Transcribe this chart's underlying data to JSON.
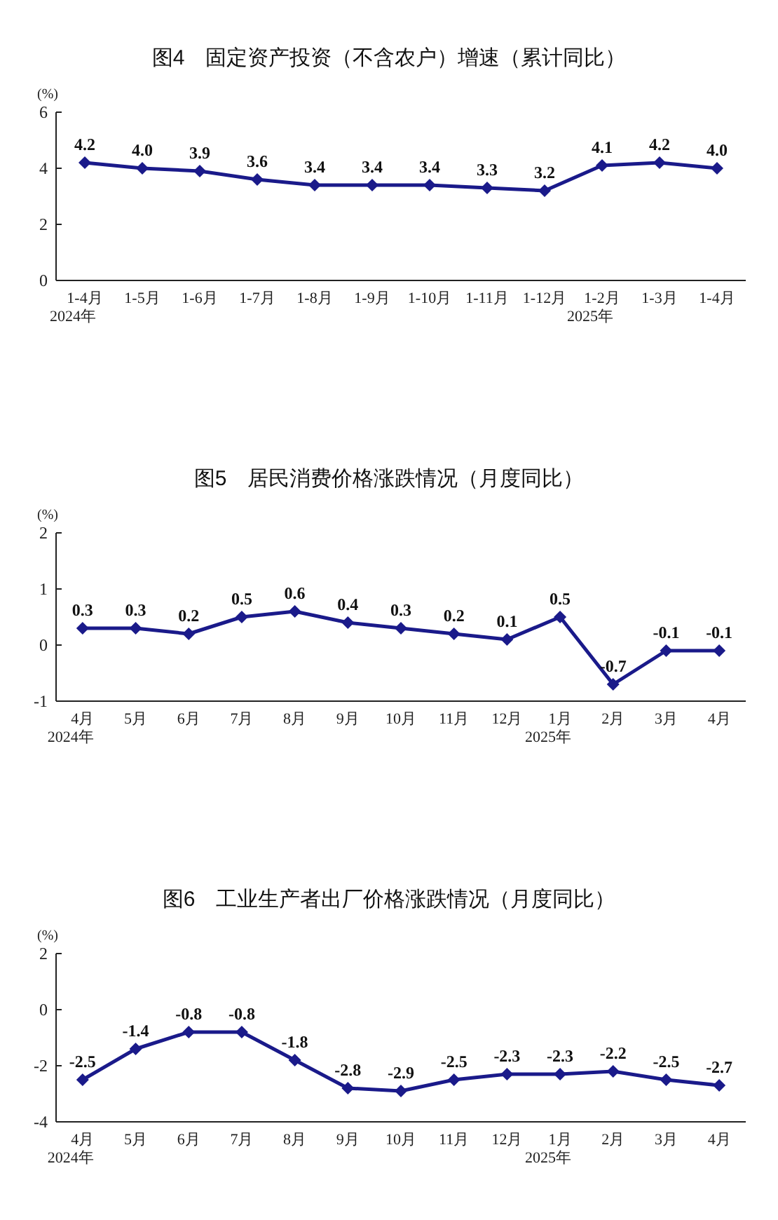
{
  "chart_data": [
    {
      "type": "line",
      "title": "图4　固定资产投资（不含农户）增速（累计同比）",
      "ylabel": "(%)",
      "categories": [
        "1-4月\n2024年",
        "1-5月",
        "1-6月",
        "1-7月",
        "1-8月",
        "1-9月",
        "1-10月",
        "1-11月",
        "1-12月",
        "1-2月\n2025年",
        "1-3月",
        "1-4月"
      ],
      "values": [
        4.2,
        4.0,
        3.9,
        3.6,
        3.4,
        3.4,
        3.4,
        3.3,
        3.2,
        4.1,
        4.2,
        4.0
      ],
      "value_labels": [
        "4.2",
        "4.0",
        "3.9",
        "3.6",
        "3.4",
        "3.4",
        "3.4",
        "3.3",
        "3.2",
        "4.1",
        "4.2",
        "4.0"
      ],
      "color": "#1a1a8a",
      "ylim": [
        0,
        6
      ],
      "yticks": [
        0,
        2,
        4,
        6
      ],
      "marker": "diamond",
      "grid": false
    },
    {
      "type": "line",
      "title": "图5　居民消费价格涨跌情况（月度同比）",
      "ylabel": "(%)",
      "categories": [
        "4月\n2024年",
        "5月",
        "6月",
        "7月",
        "8月",
        "9月",
        "10月",
        "11月",
        "12月",
        "1月\n2025年",
        "2月",
        "3月",
        "4月"
      ],
      "values": [
        0.3,
        0.3,
        0.2,
        0.5,
        0.6,
        0.4,
        0.3,
        0.2,
        0.1,
        0.5,
        -0.7,
        -0.1,
        -0.1
      ],
      "value_labels": [
        "0.3",
        "0.3",
        "0.2",
        "0.5",
        "0.6",
        "0.4",
        "0.3",
        "0.2",
        "0.1",
        "0.5",
        "-0.7",
        "-0.1",
        "-0.1"
      ],
      "color": "#1a1a8a",
      "ylim": [
        -1,
        2
      ],
      "yticks": [
        -1,
        0,
        1,
        2
      ],
      "marker": "diamond",
      "grid": false
    },
    {
      "type": "line",
      "title": "图6　工业生产者出厂价格涨跌情况（月度同比）",
      "ylabel": "(%)",
      "categories": [
        "4月\n2024年",
        "5月",
        "6月",
        "7月",
        "8月",
        "9月",
        "10月",
        "11月",
        "12月",
        "1月\n2025年",
        "2月",
        "3月",
        "4月"
      ],
      "values": [
        -2.5,
        -1.4,
        -0.8,
        -0.8,
        -1.8,
        -2.8,
        -2.9,
        -2.5,
        -2.3,
        -2.3,
        -2.2,
        -2.5,
        -2.7
      ],
      "value_labels": [
        "-2.5",
        "-1.4",
        "-0.8",
        "-0.8",
        "-1.8",
        "-2.8",
        "-2.9",
        "-2.5",
        "-2.3",
        "-2.3",
        "-2.2",
        "-2.5",
        "-2.7"
      ],
      "color": "#1a1a8a",
      "ylim": [
        -4,
        2
      ],
      "yticks": [
        -4,
        -2,
        0,
        2
      ],
      "marker": "diamond",
      "grid": false
    }
  ]
}
